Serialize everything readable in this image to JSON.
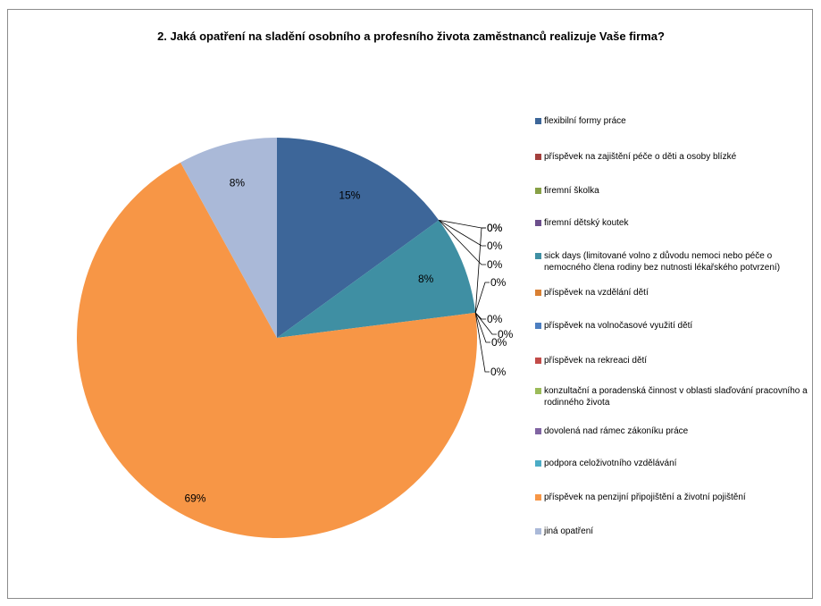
{
  "chart_data": {
    "type": "pie",
    "title": "2. Jaká opatření na sladění osobního a profesního života zaměstnanců realizuje Vaše firma?",
    "legend_position": "right",
    "slices": [
      {
        "label": "flexibilní formy práce",
        "value": 15,
        "display": "15%",
        "color": "#3d6699"
      },
      {
        "label": "příspěvek na zajištění péče o děti a osoby blízké",
        "value": 0,
        "display": "0%",
        "color": "#a33f3c"
      },
      {
        "label": "firemní školka",
        "value": 0,
        "display": "0%",
        "color": "#87a046"
      },
      {
        "label": "firemní dětský koutek",
        "value": 0,
        "display": "0%",
        "color": "#6c4f8c"
      },
      {
        "label": "sick days (limitované volno z důvodu nemoci nebo péče o nemocného člena rodiny bez nutnosti lékařského potvrzení)",
        "value": 8,
        "display": "8%",
        "color": "#3f8fa3"
      },
      {
        "label": "příspěvek na vzdělání dětí",
        "value": 0,
        "display": "0%",
        "color": "#d98033"
      },
      {
        "label": "příspěvek na volnočasové využití dětí",
        "value": 0,
        "display": "0%",
        "color": "#4c7ec0"
      },
      {
        "label": "příspěvek na rekreaci dětí",
        "value": 0,
        "display": "0%",
        "color": "#c24b48"
      },
      {
        "label": "konzultační a poradenská činnost v oblasti slaďování pracovního a rodinného života",
        "value": 0,
        "display": "0%",
        "color": "#9bbb59"
      },
      {
        "label": "dovolená nad rámec zákoníku práce",
        "value": 0,
        "display": "0%",
        "color": "#8064a2"
      },
      {
        "label": "podpora celoživotního vzdělávání",
        "value": 0,
        "display": "0%",
        "color": "#4bacc6"
      },
      {
        "label": "příspěvek na penzijní připojištění a životní pojištění",
        "value": 69,
        "display": "69%",
        "color": "#f79646"
      },
      {
        "label": "jiná opatření",
        "value": 8,
        "display": "8%",
        "color": "#aab9d8"
      }
    ]
  }
}
